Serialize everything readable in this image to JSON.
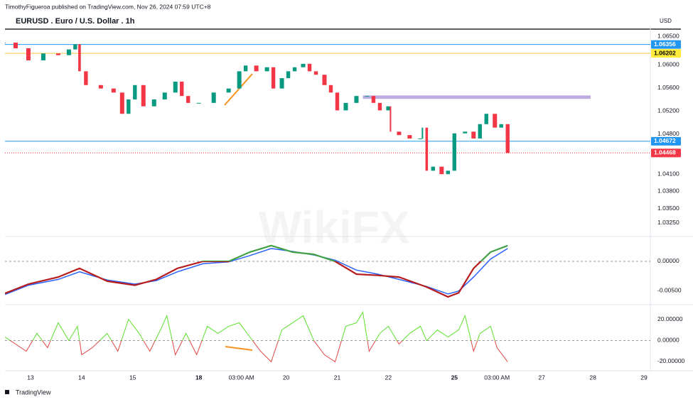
{
  "publisher": "TimothyFigueroa published on TradingView.com, Nov 26, 2024 07:59 UTC+8",
  "brand": "TradingView",
  "watermark": "WikiFX",
  "currency": "USD",
  "chart_data": [
    {
      "type": "candlestick",
      "title": "EURUSD . Euro / U.S. Dollar . 1h",
      "up_color": "#089981",
      "down_color": "#f23645",
      "grid": false,
      "xlim": [
        -12,
        291
      ],
      "xticks": [
        {
          "value": 0,
          "label": "13"
        },
        {
          "value": 24,
          "label": "14"
        },
        {
          "value": 48,
          "label": "15"
        },
        {
          "value": 79,
          "label": "18",
          "bold": true
        },
        {
          "value": 99,
          "label": "03:00 AM"
        },
        {
          "value": 120,
          "label": "20"
        },
        {
          "value": 144,
          "label": "21"
        },
        {
          "value": 168,
          "label": "22"
        },
        {
          "value": 199,
          "label": "25",
          "bold": true
        },
        {
          "value": 219,
          "label": "03:00 AM"
        },
        {
          "value": 240,
          "label": "27"
        },
        {
          "value": 264,
          "label": "28"
        },
        {
          "value": 288,
          "label": "29"
        }
      ],
      "ylim": [
        1.03114,
        1.06636
      ],
      "yticks": [
        {
          "value": 1.065,
          "label": "1.06500"
        },
        {
          "value": 1.06,
          "label": "1.06000"
        },
        {
          "value": 1.056,
          "label": "1.05600"
        },
        {
          "value": 1.052,
          "label": "1.05200"
        },
        {
          "value": 1.048,
          "label": "1.04800"
        },
        {
          "value": 1.041,
          "label": "1.04100"
        },
        {
          "value": 1.038,
          "label": "1.03800"
        },
        {
          "value": 1.035,
          "label": "1.03500"
        },
        {
          "value": 1.0325,
          "label": "1.03250"
        }
      ],
      "x": [
        -12,
        -7,
        -1,
        6,
        13,
        18,
        21,
        23,
        26,
        33,
        39,
        43,
        46,
        49,
        53,
        58,
        63,
        68,
        71,
        74,
        79,
        86,
        93,
        98,
        101,
        106,
        111,
        114,
        118,
        121,
        124,
        128,
        131,
        134,
        138,
        141,
        144,
        148,
        153,
        158,
        161,
        164,
        168,
        169,
        173,
        178,
        183,
        184,
        186,
        189,
        193,
        196,
        199,
        204,
        208,
        211,
        214,
        218,
        221,
        224
      ],
      "values": [
        1.0639,
        1.0629,
        1.0608,
        1.062,
        1.0617,
        1.0627,
        1.0636,
        1.0589,
        1.0565,
        1.0559,
        1.0552,
        1.0515,
        1.054,
        1.0565,
        1.0528,
        1.054,
        1.0552,
        1.0571,
        1.0546,
        1.0534,
        1.0534,
        1.0552,
        1.0559,
        1.0589,
        1.0599,
        1.0589,
        1.0596,
        1.0559,
        1.0577,
        1.0589,
        1.0596,
        1.0602,
        1.0589,
        1.0583,
        1.0565,
        1.0552,
        1.0521,
        1.0534,
        1.0546,
        1.0546,
        1.0534,
        1.0521,
        1.0528,
        1.0484,
        1.0478,
        1.0472,
        1.0472,
        1.0491,
        1.0416,
        1.0423,
        1.041,
        1.0416,
        1.0481,
        1.0484,
        1.0472,
        1.0497,
        1.0515,
        1.0491,
        1.0497,
        1.04468
      ],
      "levels": [
        {
          "value": 1.06356,
          "color": "#2196f3",
          "text_color": "#ffffff"
        },
        {
          "value": 1.06202,
          "color": "#f5c542",
          "label_color": "#ffeb3b",
          "text_color": "#000000"
        },
        {
          "value": 1.04672,
          "color": "#2196f3",
          "text_color": "#ffffff"
        },
        {
          "value": 1.04468,
          "color": "#f23645",
          "text_color": "#ffffff",
          "style": "dotted"
        }
      ],
      "zones": [
        {
          "from": 1.0541,
          "to": 1.0547,
          "x": [
            156,
            263
          ],
          "color": "#b39ddb"
        }
      ]
    },
    {
      "type": "line",
      "ylim": [
        -0.00695,
        0.00402
      ],
      "yticks": [
        {
          "value": 0,
          "label": "0.00000"
        },
        {
          "value": -0.005,
          "label": "-0.00500"
        }
      ],
      "x": [
        -12,
        -1,
        13,
        23,
        36,
        49,
        59,
        69,
        81,
        93,
        103,
        113,
        123,
        133,
        143,
        153,
        163,
        173,
        186,
        196,
        201,
        208,
        216,
        224
      ],
      "series": [
        {
          "color": "#2962ff",
          "width": 1.5,
          "values": [
            -0.0057,
            -0.0041,
            -0.0031,
            -0.0018,
            -0.0032,
            -0.0039,
            -0.0033,
            -0.0018,
            -0.0004,
            -0.0001,
            0.001,
            0.0022,
            0.0017,
            0.0011,
            0.0002,
            -0.0015,
            -0.0022,
            -0.0031,
            -0.0043,
            -0.0056,
            -0.0051,
            -0.0027,
            0.0004,
            0.0022
          ]
        },
        {
          "color": "#43a047",
          "negative_color": "#b71c1c",
          "width": 2.2,
          "values": [
            -0.0055,
            -0.0039,
            -0.0027,
            -0.0012,
            -0.0034,
            -0.0041,
            -0.0031,
            -0.0012,
            0,
            0,
            0.0016,
            0.0027,
            0.0016,
            0.0012,
            0,
            -0.0022,
            -0.0024,
            -0.0027,
            -0.0044,
            -0.0061,
            -0.0054,
            -0.0012,
            0.0016,
            0.0027
          ]
        }
      ]
    },
    {
      "type": "line",
      "ylim": [
        -27.5,
        32.2
      ],
      "yticks": [
        {
          "value": 20,
          "label": "20.00000"
        },
        {
          "value": 0,
          "label": "0.00000"
        },
        {
          "value": -20,
          "label": "-20.00000"
        }
      ],
      "x": [
        -12,
        -7,
        -2,
        3,
        8,
        13,
        18,
        22,
        24,
        29,
        36,
        41,
        46,
        51,
        56,
        61,
        64,
        68,
        73,
        78,
        83,
        88,
        93,
        98,
        103,
        108,
        113,
        118,
        123,
        128,
        133,
        138,
        143,
        148,
        153,
        156,
        159,
        164,
        168,
        173,
        178,
        183,
        186,
        191,
        196,
        201,
        204,
        208,
        211,
        216,
        219,
        224
      ],
      "series": [
        {
          "color": "#5be02c",
          "negative_color": "#e04545",
          "width": 1,
          "values": [
            3.4,
            -3.4,
            -10.2,
            6.8,
            -6.8,
            17.0,
            0,
            13.6,
            -13.6,
            -6.8,
            6.8,
            -10.2,
            20.3,
            6.8,
            -10.2,
            10.2,
            23.7,
            -13.6,
            6.8,
            -13.6,
            13.6,
            6.8,
            13.6,
            17.0,
            3.4,
            -10.2,
            -20.3,
            10.2,
            17.0,
            23.7,
            0,
            -13.6,
            -20.3,
            13.6,
            17.0,
            27.1,
            -10.2,
            6.8,
            13.6,
            -3.4,
            6.8,
            13.6,
            0,
            10.2,
            3.4,
            10.2,
            23.7,
            -10.2,
            6.8,
            13.6,
            -6.8,
            -20.3
          ]
        }
      ]
    }
  ]
}
